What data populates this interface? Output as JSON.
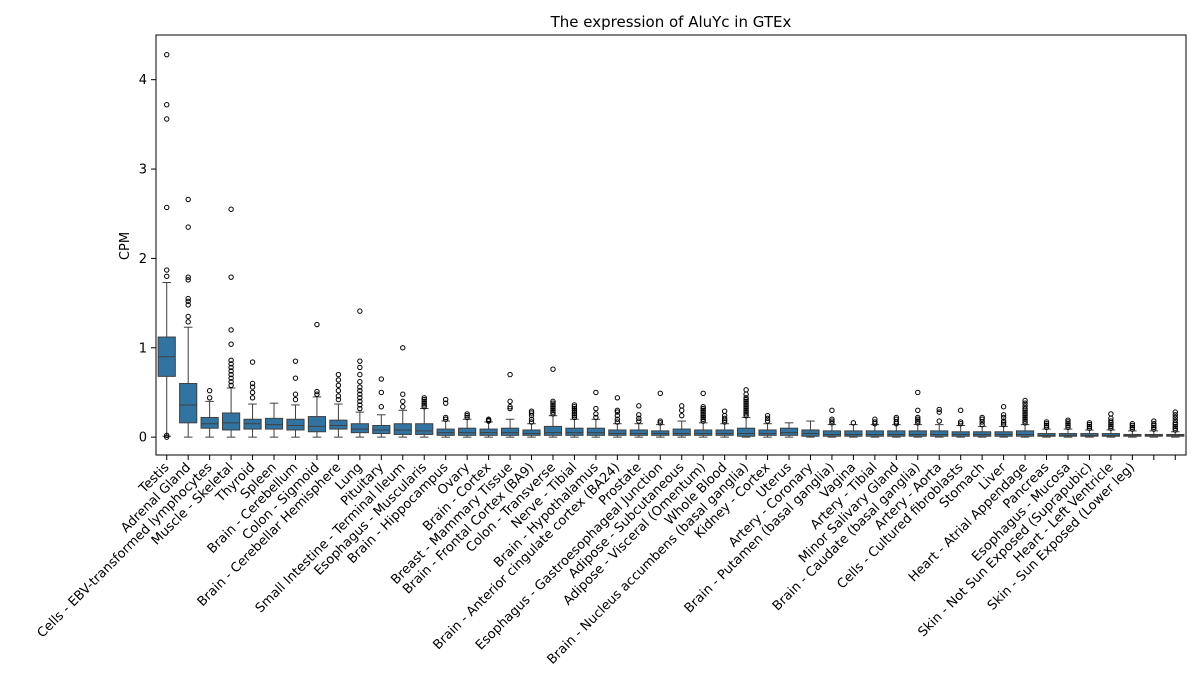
{
  "chart_data": {
    "type": "box",
    "title": "The expression of AluYc in GTEx",
    "xlabel": "",
    "ylabel": "CPM",
    "ylim": [
      -0.2,
      4.5
    ],
    "yticks": [
      0,
      1,
      2,
      3,
      4
    ],
    "box_color": "#3274a1",
    "grid": false,
    "series": [
      {
        "category": "Testis",
        "min": 0.01,
        "q1": 0.68,
        "median": 0.9,
        "q3": 1.12,
        "max": 1.73,
        "outliers": [
          0.0,
          0.02,
          1.8,
          1.87,
          2.57,
          3.56,
          3.72,
          4.28
        ]
      },
      {
        "category": "Adrenal Gland",
        "min": 0.0,
        "q1": 0.16,
        "median": 0.36,
        "q3": 0.6,
        "max": 1.23,
        "outliers": [
          1.29,
          1.35,
          1.48,
          1.52,
          1.55,
          1.76,
          1.79,
          2.35,
          2.66
        ]
      },
      {
        "category": "Cells - EBV-transformed lymphocytes",
        "min": 0.0,
        "q1": 0.1,
        "median": 0.15,
        "q3": 0.22,
        "max": 0.4,
        "outliers": [
          0.44,
          0.52
        ]
      },
      {
        "category": "Muscle - Skeletal",
        "min": 0.0,
        "q1": 0.08,
        "median": 0.16,
        "q3": 0.27,
        "max": 0.55,
        "outliers": [
          0.58,
          0.62,
          0.66,
          0.7,
          0.74,
          0.78,
          0.82,
          0.86,
          1.04,
          1.2,
          1.79,
          2.55
        ]
      },
      {
        "category": "Thyroid",
        "min": 0.0,
        "q1": 0.09,
        "median": 0.15,
        "q3": 0.2,
        "max": 0.37,
        "outliers": [
          0.44,
          0.5,
          0.56,
          0.6,
          0.84
        ]
      },
      {
        "category": "Spleen",
        "min": 0.0,
        "q1": 0.09,
        "median": 0.14,
        "q3": 0.21,
        "max": 0.38,
        "outliers": []
      },
      {
        "category": "Brain - Cerebellum",
        "min": 0.0,
        "q1": 0.08,
        "median": 0.13,
        "q3": 0.2,
        "max": 0.36,
        "outliers": [
          0.42,
          0.48,
          0.66,
          0.85
        ]
      },
      {
        "category": "Colon - Sigmoid",
        "min": 0.0,
        "q1": 0.06,
        "median": 0.12,
        "q3": 0.23,
        "max": 0.45,
        "outliers": [
          0.48,
          0.51,
          1.26
        ]
      },
      {
        "category": "Brain - Cerebellar Hemisphere",
        "min": 0.0,
        "q1": 0.09,
        "median": 0.13,
        "q3": 0.19,
        "max": 0.37,
        "outliers": [
          0.42,
          0.46,
          0.52,
          0.58,
          0.64,
          0.7
        ]
      },
      {
        "category": "Lung",
        "min": 0.0,
        "q1": 0.05,
        "median": 0.09,
        "q3": 0.15,
        "max": 0.28,
        "outliers": [
          0.32,
          0.36,
          0.4,
          0.44,
          0.48,
          0.52,
          0.56,
          0.62,
          0.7,
          0.78,
          0.85,
          1.41
        ]
      },
      {
        "category": "Pituitary",
        "min": 0.0,
        "q1": 0.04,
        "median": 0.08,
        "q3": 0.13,
        "max": 0.25,
        "outliers": [
          0.34,
          0.5,
          0.65
        ]
      },
      {
        "category": "Small Intestine - Terminal Ileum",
        "min": 0.0,
        "q1": 0.03,
        "median": 0.08,
        "q3": 0.15,
        "max": 0.3,
        "outliers": [
          0.34,
          0.4,
          0.48,
          1.0
        ]
      },
      {
        "category": "Esophagus - Muscularis",
        "min": 0.0,
        "q1": 0.03,
        "median": 0.07,
        "q3": 0.15,
        "max": 0.32,
        "outliers": [
          0.34,
          0.36,
          0.38,
          0.4,
          0.42,
          0.44
        ]
      },
      {
        "category": "Brain - Hippocampus",
        "min": 0.0,
        "q1": 0.02,
        "median": 0.05,
        "q3": 0.09,
        "max": 0.18,
        "outliers": [
          0.2,
          0.22,
          0.38,
          0.42
        ]
      },
      {
        "category": "Ovary",
        "min": 0.0,
        "q1": 0.02,
        "median": 0.05,
        "q3": 0.1,
        "max": 0.2,
        "outliers": [
          0.22,
          0.24,
          0.26
        ]
      },
      {
        "category": "Brain - Cortex",
        "min": 0.0,
        "q1": 0.02,
        "median": 0.05,
        "q3": 0.09,
        "max": 0.17,
        "outliers": [
          0.18,
          0.19,
          0.2
        ]
      },
      {
        "category": "Breast - Mammary Tissue",
        "min": 0.0,
        "q1": 0.02,
        "median": 0.05,
        "q3": 0.1,
        "max": 0.2,
        "outliers": [
          0.32,
          0.34,
          0.4,
          0.7
        ]
      },
      {
        "category": "Brain - Frontal Cortex (BA9)",
        "min": 0.0,
        "q1": 0.02,
        "median": 0.04,
        "q3": 0.08,
        "max": 0.15,
        "outliers": [
          0.17,
          0.2,
          0.24,
          0.27,
          0.29
        ]
      },
      {
        "category": "Colon - Transverse",
        "min": 0.0,
        "q1": 0.02,
        "median": 0.05,
        "q3": 0.12,
        "max": 0.24,
        "outliers": [
          0.26,
          0.28,
          0.3,
          0.32,
          0.34,
          0.36,
          0.38,
          0.4,
          0.76
        ]
      },
      {
        "category": "Nerve - Tibial",
        "min": 0.0,
        "q1": 0.02,
        "median": 0.05,
        "q3": 0.1,
        "max": 0.2,
        "outliers": [
          0.22,
          0.24,
          0.26,
          0.28,
          0.3,
          0.32,
          0.34,
          0.36
        ]
      },
      {
        "category": "Brain - Hypothalamus",
        "min": 0.0,
        "q1": 0.02,
        "median": 0.05,
        "q3": 0.1,
        "max": 0.2,
        "outliers": [
          0.22,
          0.26,
          0.32,
          0.5
        ]
      },
      {
        "category": "Brain - Anterior cingulate cortex (BA24)",
        "min": 0.0,
        "q1": 0.02,
        "median": 0.04,
        "q3": 0.08,
        "max": 0.15,
        "outliers": [
          0.17,
          0.2,
          0.24,
          0.28,
          0.3,
          0.44
        ]
      },
      {
        "category": "Prostate",
        "min": 0.0,
        "q1": 0.02,
        "median": 0.04,
        "q3": 0.08,
        "max": 0.15,
        "outliers": [
          0.18,
          0.21,
          0.25,
          0.35
        ]
      },
      {
        "category": "Esophagus - Gastroesophageal Junction",
        "min": 0.0,
        "q1": 0.02,
        "median": 0.04,
        "q3": 0.07,
        "max": 0.14,
        "outliers": [
          0.16,
          0.18,
          0.49
        ]
      },
      {
        "category": "Adipose - Subcutaneous",
        "min": 0.0,
        "q1": 0.02,
        "median": 0.04,
        "q3": 0.09,
        "max": 0.18,
        "outliers": [
          0.24,
          0.3,
          0.35
        ]
      },
      {
        "category": "Adipose - Visceral (Omentum)",
        "min": 0.0,
        "q1": 0.02,
        "median": 0.04,
        "q3": 0.08,
        "max": 0.16,
        "outliers": [
          0.18,
          0.2,
          0.22,
          0.24,
          0.26,
          0.28,
          0.3,
          0.32,
          0.34,
          0.49
        ]
      },
      {
        "category": "Whole Blood",
        "min": 0.0,
        "q1": 0.02,
        "median": 0.04,
        "q3": 0.08,
        "max": 0.15,
        "outliers": [
          0.17,
          0.19,
          0.21,
          0.24,
          0.29
        ]
      },
      {
        "category": "Brain - Nucleus accumbens (basal ganglia)",
        "min": 0.0,
        "q1": 0.01,
        "median": 0.04,
        "q3": 0.1,
        "max": 0.22,
        "outliers": [
          0.24,
          0.26,
          0.28,
          0.3,
          0.32,
          0.34,
          0.36,
          0.38,
          0.4,
          0.42,
          0.44,
          0.48,
          0.53
        ]
      },
      {
        "category": "Kidney - Cortex",
        "min": 0.0,
        "q1": 0.02,
        "median": 0.04,
        "q3": 0.08,
        "max": 0.15,
        "outliers": [
          0.18,
          0.21,
          0.24
        ]
      },
      {
        "category": "Uterus",
        "min": 0.0,
        "q1": 0.02,
        "median": 0.05,
        "q3": 0.1,
        "max": 0.16,
        "outliers": []
      },
      {
        "category": "Artery - Coronary",
        "min": 0.0,
        "q1": 0.01,
        "median": 0.04,
        "q3": 0.08,
        "max": 0.18,
        "outliers": []
      },
      {
        "category": "Brain - Putamen (basal ganglia)",
        "min": 0.0,
        "q1": 0.01,
        "median": 0.03,
        "q3": 0.07,
        "max": 0.14,
        "outliers": [
          0.16,
          0.18,
          0.2,
          0.3
        ]
      },
      {
        "category": "Vagina",
        "min": 0.0,
        "q1": 0.01,
        "median": 0.03,
        "q3": 0.07,
        "max": 0.14,
        "outliers": [
          0.16
        ]
      },
      {
        "category": "Artery - Tibial",
        "min": 0.0,
        "q1": 0.01,
        "median": 0.03,
        "q3": 0.07,
        "max": 0.14,
        "outliers": [
          0.15,
          0.17,
          0.2
        ]
      },
      {
        "category": "Minor Salivary Gland",
        "min": 0.0,
        "q1": 0.01,
        "median": 0.03,
        "q3": 0.07,
        "max": 0.14,
        "outliers": [
          0.15,
          0.17,
          0.2,
          0.22
        ]
      },
      {
        "category": "Brain - Caudate (basal ganglia)",
        "min": 0.0,
        "q1": 0.01,
        "median": 0.03,
        "q3": 0.07,
        "max": 0.14,
        "outliers": [
          0.16,
          0.18,
          0.2,
          0.22,
          0.3,
          0.5
        ]
      },
      {
        "category": "Artery - Aorta",
        "min": 0.0,
        "q1": 0.01,
        "median": 0.03,
        "q3": 0.07,
        "max": 0.14,
        "outliers": [
          0.18,
          0.28,
          0.31
        ]
      },
      {
        "category": "Cells - Cultured fibroblasts",
        "min": 0.0,
        "q1": 0.01,
        "median": 0.03,
        "q3": 0.06,
        "max": 0.13,
        "outliers": [
          0.15,
          0.17,
          0.3
        ]
      },
      {
        "category": "Stomach",
        "min": 0.0,
        "q1": 0.01,
        "median": 0.03,
        "q3": 0.06,
        "max": 0.12,
        "outliers": [
          0.14,
          0.17,
          0.2,
          0.22
        ]
      },
      {
        "category": "Liver",
        "min": 0.0,
        "q1": 0.01,
        "median": 0.03,
        "q3": 0.06,
        "max": 0.12,
        "outliers": [
          0.14,
          0.16,
          0.18,
          0.22,
          0.25,
          0.34
        ]
      },
      {
        "category": "Heart - Atrial Appendage",
        "min": 0.0,
        "q1": 0.01,
        "median": 0.03,
        "q3": 0.07,
        "max": 0.14,
        "outliers": [
          0.16,
          0.18,
          0.2,
          0.22,
          0.24,
          0.26,
          0.28,
          0.3,
          0.32,
          0.35,
          0.38,
          0.41
        ]
      },
      {
        "category": "Pancreas",
        "min": 0.0,
        "q1": 0.01,
        "median": 0.02,
        "q3": 0.04,
        "max": 0.09,
        "outliers": [
          0.11,
          0.13,
          0.15,
          0.17
        ]
      },
      {
        "category": "Esophagus - Mucosa",
        "min": 0.0,
        "q1": 0.01,
        "median": 0.02,
        "q3": 0.04,
        "max": 0.09,
        "outliers": [
          0.11,
          0.13,
          0.15,
          0.17,
          0.19
        ]
      },
      {
        "category": "Skin - Not Sun Exposed (Suprapubic)",
        "min": 0.0,
        "q1": 0.01,
        "median": 0.02,
        "q3": 0.04,
        "max": 0.08,
        "outliers": [
          0.1,
          0.12,
          0.14,
          0.16
        ]
      },
      {
        "category": "Heart - Left Ventricle",
        "min": 0.0,
        "q1": 0.01,
        "median": 0.02,
        "q3": 0.04,
        "max": 0.08,
        "outliers": [
          0.1,
          0.12,
          0.14,
          0.16,
          0.18,
          0.21,
          0.26
        ]
      },
      {
        "category": "Skin - Sun Exposed (Lower leg)",
        "min": 0.0,
        "q1": 0.01,
        "median": 0.02,
        "q3": 0.03,
        "max": 0.07,
        "outliers": [
          0.09,
          0.11,
          0.13,
          0.15
        ]
      },
      {
        "category": "",
        "min": 0.0,
        "q1": 0.01,
        "median": 0.02,
        "q3": 0.03,
        "max": 0.07,
        "outliers": [
          0.09,
          0.11,
          0.13,
          0.15,
          0.18
        ]
      },
      {
        "category": "",
        "min": 0.0,
        "q1": 0.01,
        "median": 0.02,
        "q3": 0.03,
        "max": 0.06,
        "outliers": [
          0.08,
          0.1,
          0.12,
          0.14,
          0.16,
          0.19,
          0.22,
          0.25,
          0.28
        ]
      }
    ]
  }
}
